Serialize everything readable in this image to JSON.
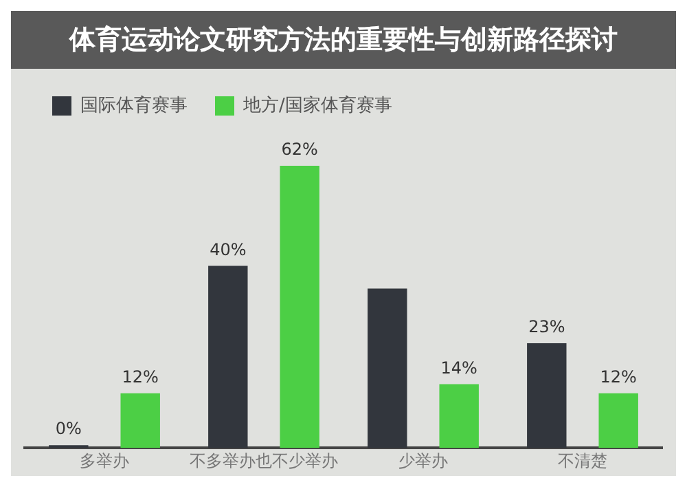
{
  "chart_data": {
    "type": "bar",
    "title": "体育运动论文研究方法的重要性与创新路径探讨",
    "categories": [
      "多举办",
      "不多举办也不少举办",
      "少举办",
      "不清楚"
    ],
    "series": [
      {
        "name": "国际体育赛事",
        "color": "#32363d",
        "values": [
          0,
          40,
          35,
          23
        ],
        "value_labels": [
          "0%",
          "40%",
          null,
          "23%"
        ]
      },
      {
        "name": "地方/国家体育赛事",
        "color": "#4ccf45",
        "values": [
          12,
          62,
          14,
          12
        ],
        "value_labels": [
          "12%",
          "62%",
          "14%",
          "12%"
        ]
      }
    ],
    "legend": "top left",
    "grid": false
  }
}
